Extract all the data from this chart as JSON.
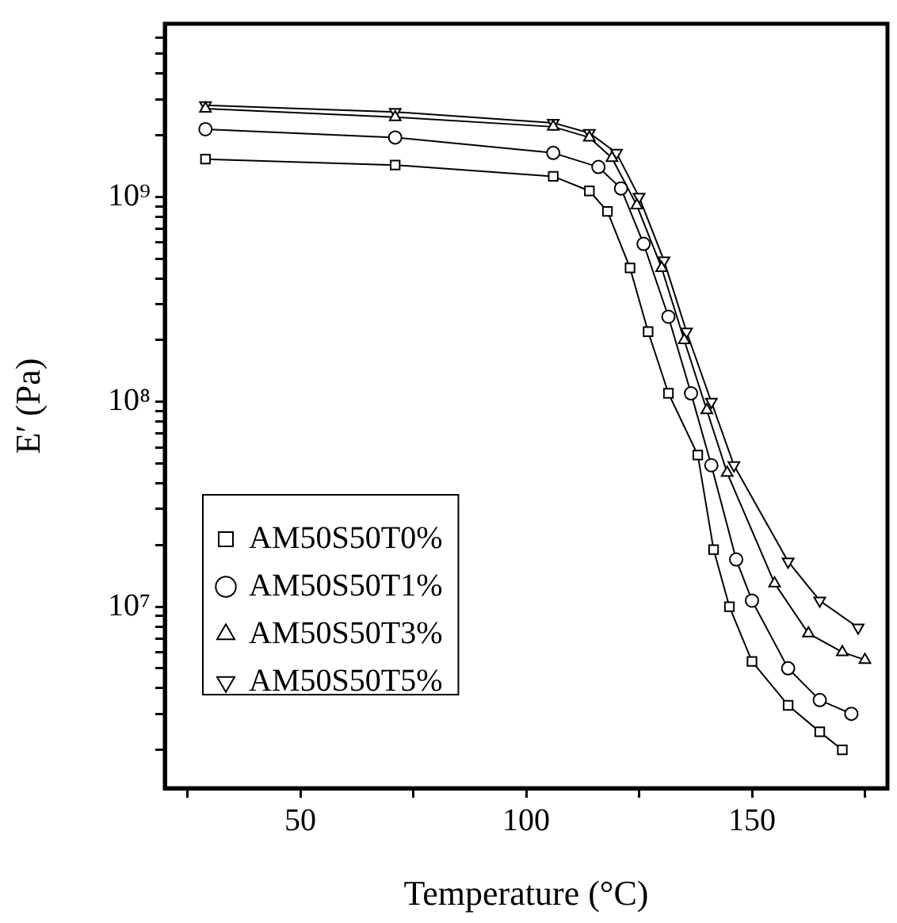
{
  "chart_data": {
    "type": "line",
    "xlabel": "Temperature (°C)",
    "ylabel": "E′ (Pa)",
    "log": "y",
    "xlim": [
      20,
      180
    ],
    "ylim": [
      1300000,
      7000000000
    ],
    "xticks": [
      {
        "value": 25,
        "label": null
      },
      50,
      {
        "value": 75,
        "label": null
      },
      100,
      {
        "value": 125,
        "label": null
      },
      150,
      {
        "value": 175,
        "label": null
      }
    ],
    "yticks": [
      {
        "value": 2000000,
        "label": null
      },
      {
        "value": 3000000,
        "label": null
      },
      {
        "value": 4000000,
        "label": null
      },
      {
        "value": 5000000,
        "label": null
      },
      {
        "value": 6000000,
        "label": null
      },
      {
        "value": 7000000,
        "label": null
      },
      {
        "value": 8000000,
        "label": null
      },
      {
        "value": 9000000,
        "label": null
      },
      {
        "value": 10000000,
        "label": "10⁷"
      },
      {
        "value": 20000000,
        "label": null
      },
      {
        "value": 30000000,
        "label": null
      },
      {
        "value": 40000000,
        "label": null
      },
      {
        "value": 50000000,
        "label": null
      },
      {
        "value": 60000000,
        "label": null
      },
      {
        "value": 70000000,
        "label": null
      },
      {
        "value": 80000000,
        "label": null
      },
      {
        "value": 90000000,
        "label": null
      },
      {
        "value": 100000000,
        "label": "10⁸"
      },
      {
        "value": 200000000,
        "label": null
      },
      {
        "value": 300000000,
        "label": null
      },
      {
        "value": 400000000,
        "label": null
      },
      {
        "value": 500000000,
        "label": null
      },
      {
        "value": 600000000,
        "label": null
      },
      {
        "value": 700000000,
        "label": null
      },
      {
        "value": 800000000,
        "label": null
      },
      {
        "value": 900000000,
        "label": null
      },
      {
        "value": 1000000000,
        "label": "10⁹"
      },
      {
        "value": 2000000000,
        "label": null
      },
      {
        "value": 3000000000,
        "label": null
      },
      {
        "value": 4000000000,
        "label": null
      },
      {
        "value": 5000000000,
        "label": null
      },
      {
        "value": 6000000000,
        "label": null
      }
    ],
    "grid": false,
    "legend": "bottom left",
    "line_style": "solid",
    "series": [
      {
        "name": "AM50S50T0%",
        "color": "#000000",
        "marker": "square",
        "x": [
          29,
          71,
          106,
          114,
          118,
          123,
          127,
          131.5,
          138,
          141.5,
          145,
          150,
          158,
          165,
          170
        ],
        "values": [
          1530000000.0,
          1430000000.0,
          1260000000.0,
          1070000000.0,
          850000000.0,
          450000000.0,
          220000000.0,
          110000000.0,
          55000000.0,
          19000000.0,
          10000000.0,
          5400000.0,
          3300000.0,
          2450000.0,
          2000000.0
        ]
      },
      {
        "name": "AM50S50T1%",
        "color": "#000000",
        "marker": "circle",
        "x": [
          29,
          71,
          106,
          116,
          121,
          126,
          131.5,
          136.5,
          141,
          146.5,
          150,
          158,
          165,
          172
        ],
        "values": [
          2140000000.0,
          1950000000.0,
          1640000000.0,
          1400000000.0,
          1100000000.0,
          590000000.0,
          260000000.0,
          110000000.0,
          49000000.0,
          17000000.0,
          10700000.0,
          5000000.0,
          3500000.0,
          3000000.0
        ]
      },
      {
        "name": "AM50S50T3%",
        "color": "#000000",
        "marker": "triangle",
        "x": [
          29,
          71,
          106,
          114,
          119,
          124.5,
          130,
          135,
          140,
          144.5,
          155,
          162.5,
          170,
          175
        ],
        "values": [
          2700000000.0,
          2450000000.0,
          2200000000.0,
          1950000000.0,
          1550000000.0,
          910000000.0,
          450000000.0,
          200000000.0,
          91000000.0,
          45000000.0,
          13000000.0,
          7400000.0,
          6000000.0,
          5500000.0
        ]
      },
      {
        "name": "AM50S50T5%",
        "color": "#000000",
        "marker": "triangle-down",
        "x": [
          29,
          71,
          106,
          114,
          120,
          125,
          130.5,
          135.5,
          141,
          146,
          158,
          165,
          173.5
        ],
        "values": [
          2800000000.0,
          2600000000.0,
          2300000000.0,
          2050000000.0,
          1640000000.0,
          1000000000.0,
          490000000.0,
          220000000.0,
          100000000.0,
          49000000.0,
          16600000.0,
          10700000.0,
          7900000.0
        ]
      }
    ]
  }
}
